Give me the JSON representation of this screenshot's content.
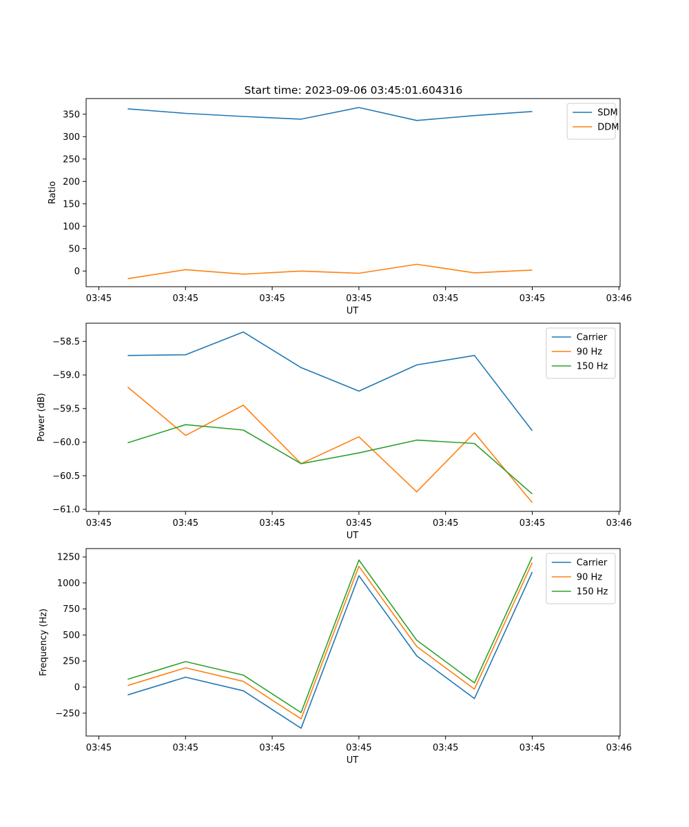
{
  "figure_title": "Start time: 2023-09-06 03:45:01.604316",
  "chart_data": [
    {
      "type": "line",
      "title": "Start time: 2023-09-06 03:45:01.604316",
      "xlabel": "UT",
      "ylabel": "Ratio",
      "x": [
        1,
        2,
        3,
        4,
        5,
        6,
        7,
        8
      ],
      "xlim": [
        0.28,
        9.52
      ],
      "x_ticks": [
        {
          "value": 0.5,
          "label": "03:45"
        },
        {
          "value": 2.0,
          "label": "03:45"
        },
        {
          "value": 3.5,
          "label": "03:45"
        },
        {
          "value": 5.0,
          "label": "03:45"
        },
        {
          "value": 6.5,
          "label": "03:45"
        },
        {
          "value": 8.0,
          "label": "03:45"
        },
        {
          "value": 9.5,
          "label": "03:46"
        }
      ],
      "ylim": [
        -35,
        385
      ],
      "y_ticks": [
        {
          "value": 350,
          "label": "350"
        },
        {
          "value": 300,
          "label": "300"
        },
        {
          "value": 250,
          "label": "250"
        },
        {
          "value": 200,
          "label": "200"
        },
        {
          "value": 150,
          "label": "150"
        },
        {
          "value": 100,
          "label": "100"
        },
        {
          "value": 50,
          "label": "50"
        },
        {
          "value": 0,
          "label": "0"
        }
      ],
      "legend_position": "top-right",
      "series": [
        {
          "name": "SDM",
          "color": "#1f77b4",
          "values": [
            362,
            352,
            345,
            339,
            365,
            336,
            347,
            356
          ]
        },
        {
          "name": "DDM",
          "color": "#ff7f0e",
          "values": [
            -17,
            3,
            -7,
            0,
            -5,
            15,
            -4,
            2
          ]
        }
      ]
    },
    {
      "type": "line",
      "title": "",
      "xlabel": "UT",
      "ylabel": "Power (dB)",
      "x": [
        1,
        2,
        3,
        4,
        5,
        6,
        7,
        8
      ],
      "xlim": [
        0.28,
        9.52
      ],
      "x_ticks": [
        {
          "value": 0.5,
          "label": "03:45"
        },
        {
          "value": 2.0,
          "label": "03:45"
        },
        {
          "value": 3.5,
          "label": "03:45"
        },
        {
          "value": 5.0,
          "label": "03:45"
        },
        {
          "value": 6.5,
          "label": "03:45"
        },
        {
          "value": 8.0,
          "label": "03:45"
        },
        {
          "value": 9.5,
          "label": "03:46"
        }
      ],
      "ylim": [
        -61.03,
        -58.23
      ],
      "y_ticks": [
        {
          "value": -58.5,
          "label": "−58.5"
        },
        {
          "value": -59.0,
          "label": "−59.0"
        },
        {
          "value": -59.5,
          "label": "−59.5"
        },
        {
          "value": -60.0,
          "label": "−60.0"
        },
        {
          "value": -60.5,
          "label": "−60.5"
        },
        {
          "value": -61.0,
          "label": "−61.0"
        }
      ],
      "legend_position": "top-right",
      "series": [
        {
          "name": "Carrier",
          "color": "#1f77b4",
          "values": [
            -58.71,
            -58.7,
            -58.36,
            -58.89,
            -59.24,
            -58.85,
            -58.71,
            -59.83
          ]
        },
        {
          "name": "90 Hz",
          "color": "#ff7f0e",
          "values": [
            -59.18,
            -59.9,
            -59.45,
            -60.32,
            -59.92,
            -60.74,
            -59.86,
            -60.9
          ]
        },
        {
          "name": "150 Hz",
          "color": "#2ca02c",
          "values": [
            -60.01,
            -59.74,
            -59.82,
            -60.32,
            -60.16,
            -59.97,
            -60.02,
            -60.77
          ]
        }
      ]
    },
    {
      "type": "line",
      "title": "",
      "xlabel": "UT",
      "ylabel": "Frequency (Hz)",
      "x": [
        1,
        2,
        3,
        4,
        5,
        6,
        7,
        8
      ],
      "xlim": [
        0.28,
        9.52
      ],
      "x_ticks": [
        {
          "value": 0.5,
          "label": "03:45"
        },
        {
          "value": 2.0,
          "label": "03:45"
        },
        {
          "value": 3.5,
          "label": "03:45"
        },
        {
          "value": 5.0,
          "label": "03:45"
        },
        {
          "value": 6.5,
          "label": "03:45"
        },
        {
          "value": 8.0,
          "label": "03:45"
        },
        {
          "value": 9.5,
          "label": "03:46"
        }
      ],
      "ylim": [
        -470,
        1330
      ],
      "y_ticks": [
        {
          "value": 1250,
          "label": "1250"
        },
        {
          "value": 1000,
          "label": "1000"
        },
        {
          "value": 750,
          "label": "750"
        },
        {
          "value": 500,
          "label": "500"
        },
        {
          "value": 250,
          "label": "250"
        },
        {
          "value": 0,
          "label": "0"
        },
        {
          "value": -250,
          "label": "−250"
        }
      ],
      "legend_position": "top-right",
      "series": [
        {
          "name": "Carrier",
          "color": "#1f77b4",
          "values": [
            -75,
            95,
            -35,
            -395,
            1070,
            300,
            -110,
            1105
          ]
        },
        {
          "name": "90 Hz",
          "color": "#ff7f0e",
          "values": [
            15,
            185,
            55,
            -305,
            1160,
            390,
            -20,
            1195
          ]
        },
        {
          "name": "150 Hz",
          "color": "#2ca02c",
          "values": [
            75,
            245,
            115,
            -245,
            1220,
            450,
            40,
            1250
          ]
        }
      ]
    }
  ]
}
